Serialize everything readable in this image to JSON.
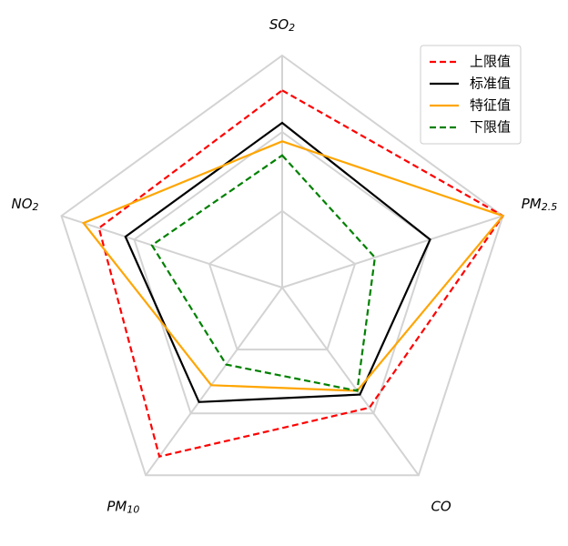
{
  "chart_data": {
    "type": "radar",
    "axes": [
      {
        "base": "SO",
        "sub": "2"
      },
      {
        "base": "PM",
        "sub": "2.5"
      },
      {
        "base": "CO",
        "sub": ""
      },
      {
        "base": "PM",
        "sub": "10"
      },
      {
        "base": "NO",
        "sub": "2"
      }
    ],
    "rlim": [
      0,
      1
    ],
    "ring_levels": [
      0.33,
      0.67,
      1.0
    ],
    "grid": true,
    "legend_position": "top-right",
    "series": [
      {
        "name": "上限值",
        "color": "#ff0000",
        "dashed": true,
        "values": [
          0.85,
          1.0,
          0.64,
          0.9,
          0.83
        ]
      },
      {
        "name": "标准值",
        "color": "#000000",
        "dashed": false,
        "values": [
          0.71,
          0.67,
          0.57,
          0.61,
          0.71
        ]
      },
      {
        "name": "特征值",
        "color": "#ffa500",
        "dashed": false,
        "values": [
          0.63,
          1.0,
          0.55,
          0.52,
          0.9
        ]
      },
      {
        "name": "下限值",
        "color": "#008000",
        "dashed": true,
        "values": [
          0.57,
          0.42,
          0.55,
          0.41,
          0.59
        ]
      }
    ]
  }
}
